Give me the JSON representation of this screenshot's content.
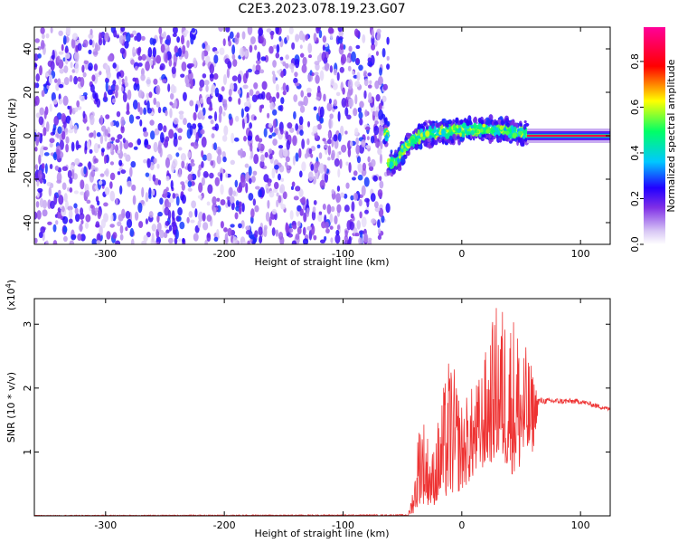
{
  "figure_title": "C2E3.2023.078.19.23.G07",
  "colors": {
    "snr_line": "#ee3333",
    "axes": "#000000",
    "colormap": [
      "#ffffff",
      "#d9c8f5",
      "#7f2fe6",
      "#2200ff",
      "#00c8ff",
      "#00ff66",
      "#ffff00",
      "#ff0000",
      "#ff0099"
    ]
  },
  "chart_data": [
    {
      "type": "heatmap",
      "xlabel": "Height of straight line (km)",
      "ylabel": "Frequency (Hz)",
      "xlim": [
        -360,
        125
      ],
      "ylim": [
        -50,
        50
      ],
      "xticks": [
        -300,
        -200,
        -100,
        0,
        100
      ],
      "yticks": [
        -40,
        -20,
        0,
        20,
        40
      ],
      "colorbar": {
        "label": "Normalized spectral amplitude",
        "range": [
          0.0,
          0.95
        ],
        "ticks": [
          0.0,
          0.2,
          0.4,
          0.6,
          0.8
        ]
      },
      "regions": [
        {
          "x_range": [
            -360,
            -70
          ],
          "description": "noise",
          "amplitude": [
            0.1,
            0.3
          ],
          "freq_spread": 50
        },
        {
          "x_range": [
            -65,
            55
          ],
          "description": "signal band",
          "amplitude": [
            0.3,
            0.7
          ],
          "freq_center_path": [
            [
              -62,
              -12
            ],
            [
              -55,
              -12
            ],
            [
              -45,
              -3
            ],
            [
              -30,
              1
            ],
            [
              -10,
              2
            ],
            [
              10,
              3
            ],
            [
              30,
              3
            ],
            [
              55,
              1
            ]
          ]
        },
        {
          "x_range": [
            55,
            125
          ],
          "description": "strong tone",
          "amplitude": [
            0.9,
            0.95
          ],
          "freq_center": 0
        }
      ]
    },
    {
      "type": "line",
      "xlabel": "Height of straight line (km)",
      "ylabel": "SNR (10 * v/v)",
      "y_multiplier_label": "(x10",
      "y_multiplier_exp": "4",
      "y_multiplier_close": ")",
      "xlim": [
        -360,
        125
      ],
      "ylim": [
        0,
        3.4
      ],
      "xticks": [
        -300,
        -200,
        -100,
        0,
        100
      ],
      "yticks": [
        1,
        2,
        3
      ],
      "series": [
        {
          "envelope": [
            {
              "x": -360,
              "y_low": 0.0,
              "y_high": 0.01
            },
            {
              "x": -45,
              "y_low": 0.0,
              "y_high": 0.02
            },
            {
              "x": -40,
              "y_low": 0.05,
              "y_high": 0.6
            },
            {
              "x": -35,
              "y_low": 0.2,
              "y_high": 1.8
            },
            {
              "x": -25,
              "y_low": 0.15,
              "y_high": 1.0
            },
            {
              "x": -10,
              "y_low": 0.3,
              "y_high": 2.6
            },
            {
              "x": 0,
              "y_low": 0.4,
              "y_high": 1.8
            },
            {
              "x": 15,
              "y_low": 0.7,
              "y_high": 2.2
            },
            {
              "x": 30,
              "y_low": 0.9,
              "y_high": 3.4
            },
            {
              "x": 45,
              "y_low": 0.6,
              "y_high": 3.2
            },
            {
              "x": 60,
              "y_low": 1.0,
              "y_high": 2.3
            },
            {
              "x": 65,
              "y_low": 1.75,
              "y_high": 1.85
            },
            {
              "x": 100,
              "y_low": 1.75,
              "y_high": 1.83
            },
            {
              "x": 125,
              "y_low": 1.63,
              "y_high": 1.7
            }
          ]
        }
      ]
    }
  ]
}
